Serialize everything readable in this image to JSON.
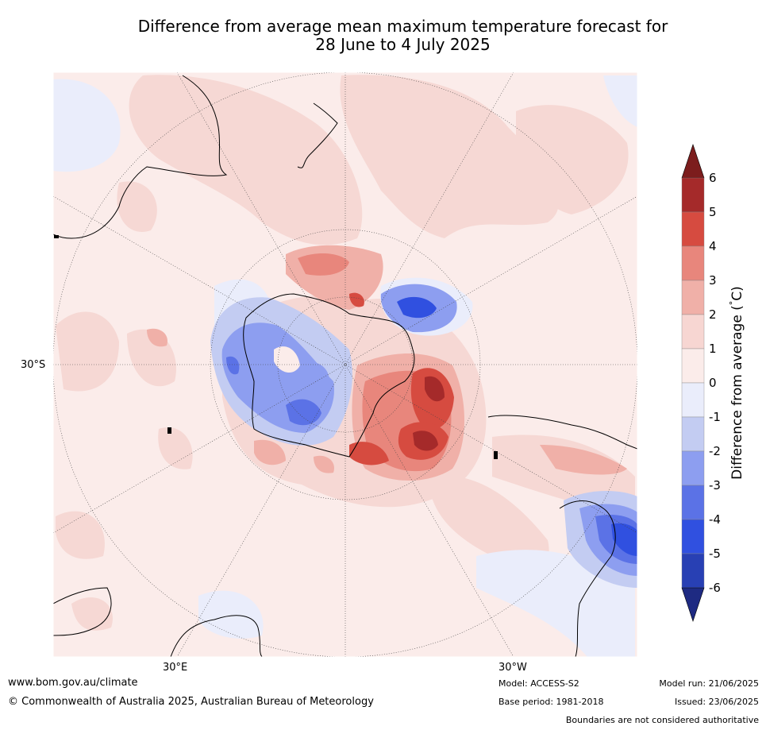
{
  "title_line1": "Difference from average mean maximum temperature forecast for",
  "title_line2": "28 June to 4 July 2025",
  "map_labels": {
    "lat": "30°S",
    "lon_e": "30°E",
    "lon_w": "30°W"
  },
  "colorbar": {
    "label": "Difference from average (",
    "unit_mid": "°",
    "unit_end": "C)",
    "ticks": [
      "6",
      "5",
      "4",
      "3",
      "2",
      "1",
      "0",
      "-1",
      "-2",
      "-3",
      "-4",
      "-5",
      "-6"
    ],
    "colors": [
      "#a52a2a",
      "#d64b40",
      "#e8867c",
      "#f0b0a8",
      "#f7d6d2",
      "#fbecea",
      "#eaedfb",
      "#c3ccf2",
      "#8d9ef0",
      "#5b72e6",
      "#3050e0",
      "#2840b4"
    ],
    "over_color": "#7c1d1d",
    "under_color": "#1e2a82"
  },
  "footer": {
    "website": "www.bom.gov.au/climate",
    "copyright": "© Commonwealth of Australia 2025, Australian Bureau of Meteorology",
    "model": "Model: ACCESS-S2",
    "base_period": "Base period: 1981-2018",
    "model_run": "Model run: 21/06/2025",
    "issued": "Issued: 23/06/2025",
    "disclaimer": "Boundaries are not considered authoritative"
  }
}
